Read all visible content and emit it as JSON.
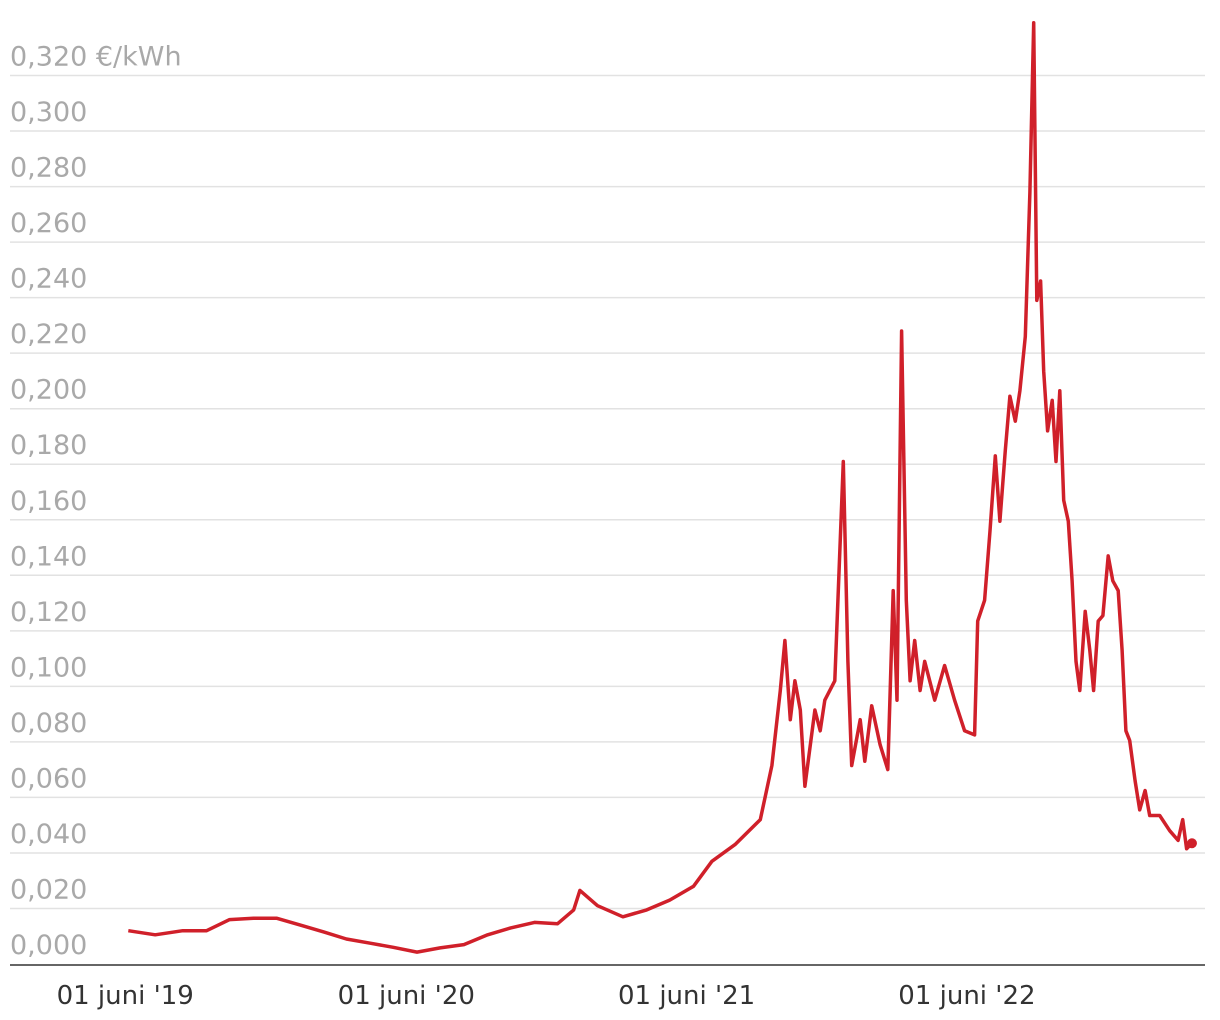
{
  "chart_data": {
    "type": "line",
    "x": [
      "2019-06-05",
      "2019-07-10",
      "2019-08-15",
      "2019-09-15",
      "2019-10-15",
      "2019-11-15",
      "2019-12-15",
      "2020-01-15",
      "2020-02-15",
      "2020-03-15",
      "2020-04-15",
      "2020-05-15",
      "2020-06-15",
      "2020-07-15",
      "2020-08-15",
      "2020-09-15",
      "2020-10-15",
      "2020-11-15",
      "2020-12-15",
      "2021-01-05",
      "2021-01-13",
      "2021-02-05",
      "2021-03-10",
      "2021-04-10",
      "2021-05-10",
      "2021-06-10",
      "2021-07-04",
      "2021-08-03",
      "2021-09-05",
      "2021-09-20",
      "2021-10-01",
      "2021-10-07",
      "2021-10-14",
      "2021-10-20",
      "2021-10-27",
      "2021-11-02",
      "2021-11-15",
      "2021-11-22",
      "2021-11-28",
      "2021-12-11",
      "2021-12-22",
      "2021-12-28",
      "2022-01-02",
      "2022-01-13",
      "2022-01-19",
      "2022-01-28",
      "2022-02-08",
      "2022-02-18",
      "2022-02-25",
      "2022-03-02",
      "2022-03-08",
      "2022-03-14",
      "2022-03-19",
      "2022-03-25",
      "2022-04-01",
      "2022-04-07",
      "2022-04-20",
      "2022-05-03",
      "2022-05-16",
      "2022-05-29",
      "2022-06-11",
      "2022-06-15",
      "2022-06-24",
      "2022-07-01",
      "2022-07-08",
      "2022-07-14",
      "2022-07-21",
      "2022-07-27",
      "2022-08-03",
      "2022-08-09",
      "2022-08-16",
      "2022-08-22",
      "2022-08-27",
      "2022-08-31",
      "2022-09-05",
      "2022-09-09",
      "2022-09-14",
      "2022-09-20",
      "2022-09-25",
      "2022-09-30",
      "2022-10-05",
      "2022-10-11",
      "2022-10-16",
      "2022-10-21",
      "2022-10-26",
      "2022-11-02",
      "2022-11-08",
      "2022-11-13",
      "2022-11-19",
      "2022-11-25",
      "2022-12-02",
      "2022-12-08",
      "2022-12-15",
      "2022-12-20",
      "2022-12-25",
      "2022-12-30",
      "2023-01-06",
      "2023-01-12",
      "2023-01-19",
      "2023-01-25",
      "2023-02-07",
      "2023-02-20",
      "2023-03-03",
      "2023-03-09",
      "2023-03-14",
      "2023-03-21"
    ],
    "series": [
      {
        "color": "#d0202a",
        "values": [
          0.012,
          0.0105,
          0.012,
          0.012,
          0.016,
          0.0165,
          0.0165,
          0.014,
          0.0115,
          0.009,
          0.0075,
          0.006,
          0.0043,
          0.0058,
          0.007,
          0.0105,
          0.013,
          0.015,
          0.0145,
          0.0195,
          0.0265,
          0.021,
          0.017,
          0.0195,
          0.023,
          0.028,
          0.037,
          0.043,
          0.052,
          0.0715,
          0.0985,
          0.1165,
          0.088,
          0.102,
          0.0915,
          0.064,
          0.0915,
          0.084,
          0.095,
          0.102,
          0.181,
          0.109,
          0.0715,
          0.088,
          0.073,
          0.093,
          0.079,
          0.07,
          0.1345,
          0.095,
          0.228,
          0.131,
          0.102,
          0.1165,
          0.0985,
          0.109,
          0.095,
          0.1075,
          0.095,
          0.084,
          0.0825,
          0.1235,
          0.131,
          0.156,
          0.183,
          0.1595,
          0.185,
          0.2045,
          0.1955,
          0.2065,
          0.226,
          0.278,
          0.339,
          0.239,
          0.246,
          0.2135,
          0.192,
          0.203,
          0.181,
          0.2065,
          0.167,
          0.1595,
          0.138,
          0.109,
          0.0985,
          0.127,
          0.113,
          0.0985,
          0.1235,
          0.1255,
          0.147,
          0.138,
          0.1345,
          0.113,
          0.084,
          0.0805,
          0.066,
          0.0555,
          0.0625,
          0.0535,
          0.0535,
          0.048,
          0.0445,
          0.052,
          0.0415,
          0.0435
        ]
      }
    ],
    "xlim": [
      "2019-01-02",
      "2023-04-07"
    ],
    "xticks": [
      {
        "value": "2019-06-01",
        "label": "01 juni '19"
      },
      {
        "value": "2020-06-01",
        "label": "01 juni '20"
      },
      {
        "value": "2021-06-01",
        "label": "01 juni '21"
      },
      {
        "value": "2022-06-01",
        "label": "01 juni '22"
      }
    ],
    "ylim": [
      0,
      0.34
    ],
    "yticks": [
      {
        "value": 0,
        "label": "0,000"
      },
      {
        "value": 0.02,
        "label": "0,020"
      },
      {
        "value": 0.04,
        "label": "0,040"
      },
      {
        "value": 0.06,
        "label": "0,060"
      },
      {
        "value": 0.08,
        "label": "0,080"
      },
      {
        "value": 0.1,
        "label": "0,100"
      },
      {
        "value": 0.12,
        "label": "0,120"
      },
      {
        "value": 0.14,
        "label": "0,140"
      },
      {
        "value": 0.16,
        "label": "0,160"
      },
      {
        "value": 0.18,
        "label": "0,180"
      },
      {
        "value": 0.2,
        "label": "0,200"
      },
      {
        "value": 0.22,
        "label": "0,220"
      },
      {
        "value": 0.24,
        "label": "0,240"
      },
      {
        "value": 0.26,
        "label": "0,260"
      },
      {
        "value": 0.28,
        "label": "0,280"
      },
      {
        "value": 0.3,
        "label": "0,300"
      },
      {
        "value": 0.32,
        "label": "0,320 €/kWh"
      }
    ],
    "grid": true
  }
}
